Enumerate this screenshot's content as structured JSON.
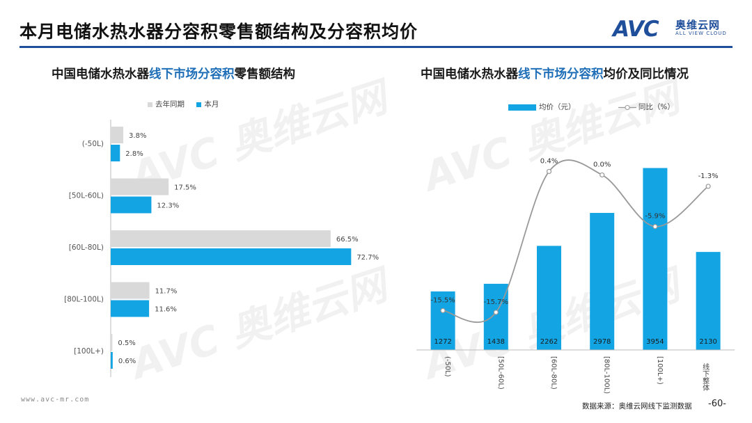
{
  "page": {
    "title": "本月电储水热水器分容积零售额结构及分容积均价",
    "logo_mark": "AVC",
    "logo_cn": "奥维云网",
    "logo_en": "ALL VIEW CLOUD",
    "footer_url": "www.avc-mr.com",
    "footer_source": "数据来源：奥维云网线下监测数据",
    "page_number": "-60-"
  },
  "left_chart_title": {
    "pre": "中国电储水热水器",
    "hl": "线下市场分容积",
    "post": "零售额结构"
  },
  "right_chart_title": {
    "pre": "中国电储水热水器",
    "hl": "线下市场分容积",
    "post": "均价及同比情况"
  },
  "colors": {
    "last_year": "#d9d9d9",
    "this_month": "#12a4e3",
    "line": "#999999",
    "accent": "#1f4e9b"
  },
  "chart_data": [
    {
      "type": "bar",
      "orientation": "horizontal",
      "categories": [
        "(-50L)",
        "[50L-60L)",
        "[60L-80L)",
        "[80L-100L)",
        "[100L+)"
      ],
      "series": [
        {
          "name": "去年同期",
          "values": [
            3.8,
            17.5,
            66.5,
            11.7,
            0.5
          ],
          "labels": [
            "3.8%",
            "17.5%",
            "66.5%",
            "11.7%",
            "0.5%"
          ]
        },
        {
          "name": "本月",
          "values": [
            2.8,
            12.3,
            72.7,
            11.6,
            0.6
          ],
          "labels": [
            "2.8%",
            "12.3%",
            "72.7%",
            "11.6%",
            "0.6%"
          ]
        }
      ],
      "xlim": [
        0,
        80
      ],
      "legend": "top"
    },
    {
      "type": "bar+line",
      "categories": [
        "(-50L)",
        "[50L-60L)",
        "[60L-80L)",
        "[80L-100L)",
        "[100L+)",
        "线下整体"
      ],
      "series": [
        {
          "name": "均价（元）",
          "type": "bar",
          "values": [
            1272,
            1438,
            2262,
            2978,
            3954,
            2130
          ],
          "labels": [
            "1272",
            "1438",
            "2262",
            "2978",
            "3954",
            "2130"
          ]
        },
        {
          "name": "同比（%）",
          "type": "line",
          "values": [
            -15.5,
            -15.7,
            0.4,
            0.0,
            -5.9,
            -1.3
          ],
          "labels": [
            "-15.5%",
            "-15.7%",
            "0.4%",
            "0.0%",
            "-5.9%",
            "-1.3%"
          ]
        }
      ],
      "bar_ylim": [
        0,
        4400
      ],
      "line_ylim": [
        -20,
        2.5
      ],
      "legend": "top"
    }
  ]
}
